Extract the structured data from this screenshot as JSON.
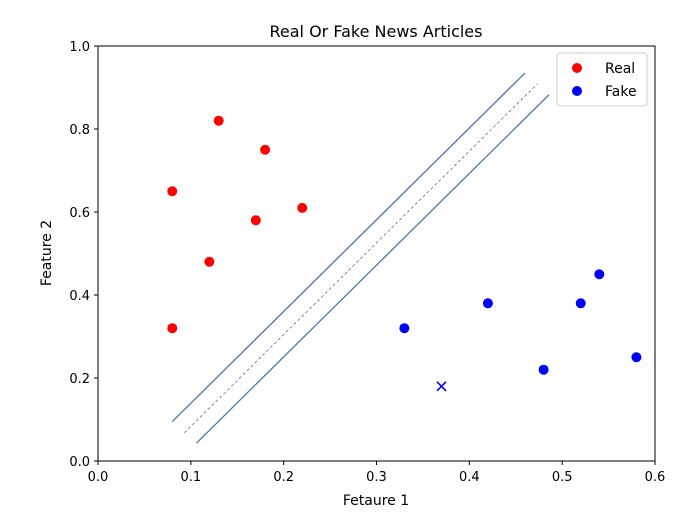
{
  "chart_data": {
    "type": "scatter",
    "title": "Real Or Fake News Articles",
    "xlabel": "Fetaure 1",
    "ylabel": "Feature 2",
    "xlim": [
      0.0,
      0.6
    ],
    "ylim": [
      0.0,
      1.0
    ],
    "grid": false,
    "legend_position": "top-right",
    "xticks": [
      "0.0",
      "0.1",
      "0.2",
      "0.3",
      "0.4",
      "0.5",
      "0.6"
    ],
    "yticks": [
      "0.0",
      "0.2",
      "0.4",
      "0.6",
      "0.8",
      "1.0"
    ],
    "series": [
      {
        "name": "Real",
        "color": "#ff0000",
        "marker": "circle",
        "points": [
          [
            0.13,
            0.82
          ],
          [
            0.18,
            0.75
          ],
          [
            0.08,
            0.65
          ],
          [
            0.22,
            0.61
          ],
          [
            0.17,
            0.58
          ],
          [
            0.12,
            0.48
          ],
          [
            0.08,
            0.32
          ]
        ]
      },
      {
        "name": "Fake",
        "color": "#0000ff",
        "marker": "circle",
        "points": [
          [
            0.33,
            0.32
          ],
          [
            0.42,
            0.38
          ],
          [
            0.52,
            0.38
          ],
          [
            0.54,
            0.45
          ],
          [
            0.48,
            0.22
          ],
          [
            0.58,
            0.25
          ]
        ]
      }
    ],
    "query_point": {
      "x": 0.37,
      "y": 0.18,
      "color": "#0000ff",
      "marker": "x"
    },
    "lines": [
      {
        "name": "upper-margin",
        "style": "solid",
        "color": "#4c72b0",
        "x1": 0.08,
        "y1": 0.095,
        "x2": 0.46,
        "y2": 0.935
      },
      {
        "name": "decision-boundary",
        "style": "dashed",
        "color": "#4c72b0",
        "x1": 0.093,
        "y1": 0.068,
        "x2": 0.473,
        "y2": 0.908
      },
      {
        "name": "lower-margin",
        "style": "solid",
        "color": "#4c72b0",
        "x1": 0.106,
        "y1": 0.043,
        "x2": 0.486,
        "y2": 0.883
      }
    ]
  }
}
